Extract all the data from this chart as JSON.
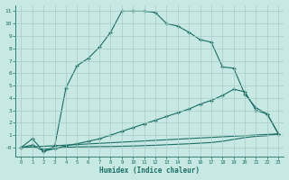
{
  "xlabel": "Humidex (Indice chaleur)",
  "background_color": "#c8e8e4",
  "grid_color": "#a8ccc8",
  "line_color": "#1a6e64",
  "xlim": [
    -0.5,
    23.5
  ],
  "ylim": [
    -0.7,
    11.5
  ],
  "xticks": [
    0,
    1,
    2,
    3,
    4,
    5,
    6,
    7,
    8,
    9,
    10,
    11,
    12,
    13,
    14,
    15,
    16,
    17,
    18,
    19,
    20,
    21,
    22,
    23
  ],
  "yticks": [
    0,
    1,
    2,
    3,
    4,
    5,
    6,
    7,
    8,
    9,
    10,
    11
  ],
  "line1_x": [
    0,
    1,
    2,
    3,
    4,
    5,
    6,
    7,
    8,
    9,
    10,
    11,
    12,
    13,
    14,
    15,
    16,
    17,
    18,
    19,
    20,
    21,
    22,
    23
  ],
  "line1_y": [
    0,
    0.7,
    -0.3,
    0.1,
    4.8,
    6.6,
    7.2,
    8.1,
    9.3,
    11.0,
    11.0,
    11.0,
    10.9,
    10.0,
    9.8,
    9.3,
    8.7,
    8.5,
    6.5,
    6.4,
    4.3,
    3.2,
    2.7,
    1.1
  ],
  "line2_x": [
    0,
    1,
    2,
    3,
    4,
    5,
    6,
    7,
    8,
    9,
    10,
    11,
    12,
    13,
    14,
    15,
    16,
    17,
    18,
    19,
    20,
    21,
    22,
    23
  ],
  "line2_y": [
    0,
    0.2,
    -0.3,
    -0.1,
    0.15,
    0.3,
    0.5,
    0.7,
    1.0,
    1.3,
    1.6,
    1.9,
    2.2,
    2.5,
    2.8,
    3.1,
    3.5,
    3.8,
    4.2,
    4.7,
    4.5,
    3.0,
    2.7,
    1.1
  ],
  "line3_x": [
    0,
    23
  ],
  "line3_y": [
    0,
    1.1
  ],
  "line4_x": [
    0,
    1,
    2,
    3,
    4,
    5,
    6,
    7,
    8,
    9,
    10,
    11,
    12,
    13,
    14,
    15,
    16,
    17,
    18,
    19,
    20,
    21,
    22,
    23
  ],
  "line4_y": [
    0,
    0.05,
    -0.15,
    -0.1,
    0.02,
    0.05,
    0.06,
    0.07,
    0.08,
    0.1,
    0.12,
    0.15,
    0.18,
    0.22,
    0.26,
    0.3,
    0.35,
    0.4,
    0.5,
    0.65,
    0.8,
    0.9,
    0.95,
    1.1
  ]
}
